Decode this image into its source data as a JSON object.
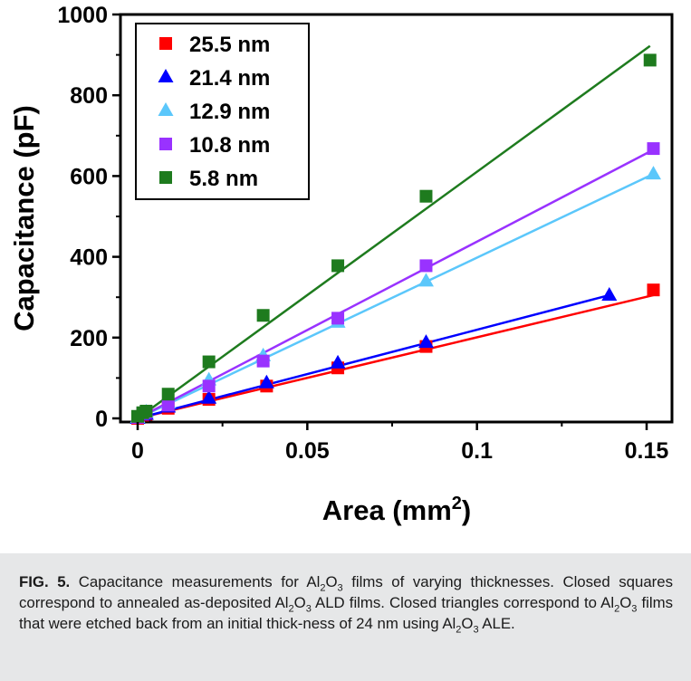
{
  "chart_data": {
    "type": "scatter",
    "xlabel": "Area (mm",
    "xlabel_sup": "2",
    "xlabel_end": ")",
    "ylabel": "Capacitance (pF)",
    "xlim": [
      -0.005,
      0.16
    ],
    "ylim": [
      -10,
      1000
    ],
    "x_ticks": [
      0,
      0.05,
      0.1,
      0.15
    ],
    "x_tick_labels": [
      "0",
      "0.05",
      "0.1",
      "0.15"
    ],
    "y_ticks": [
      0,
      200,
      400,
      600,
      800,
      1000
    ],
    "y_tick_labels": [
      "0",
      "200",
      "400",
      "600",
      "800",
      "1000"
    ],
    "grid": false,
    "legend_position": "top-left",
    "fit_lines": true,
    "series": [
      {
        "name": "25.5 nm",
        "marker": "square",
        "color": "#ff0000",
        "x": [
          0,
          0.0015,
          0.0025,
          0.009,
          0.021,
          0.038,
          0.059,
          0.085,
          0.152
        ],
        "y": [
          0,
          8,
          10,
          25,
          47,
          80,
          125,
          178,
          318
        ],
        "fit": {
          "x": [
            0,
            0.152
          ],
          "y": [
            0,
            305
          ]
        }
      },
      {
        "name": "21.4 nm",
        "marker": "triangle",
        "color": "#0000ff",
        "x": [
          0,
          0.0015,
          0.0025,
          0.009,
          0.021,
          0.038,
          0.059,
          0.085,
          0.139
        ],
        "y": [
          0,
          8,
          10,
          28,
          50,
          88,
          137,
          188,
          305
        ],
        "fit": {
          "x": [
            0,
            0.139
          ],
          "y": [
            0,
            305
          ]
        }
      },
      {
        "name": "12.9 nm",
        "marker": "triangle",
        "color": "#5bc7fb",
        "x": [
          0,
          0.0015,
          0.0025,
          0.009,
          0.021,
          0.037,
          0.059,
          0.085,
          0.152
        ],
        "y": [
          2,
          12,
          16,
          38,
          95,
          155,
          238,
          340,
          605
        ],
        "fit": {
          "x": [
            0,
            0.152
          ],
          "y": [
            0,
            605
          ]
        }
      },
      {
        "name": "10.8 nm",
        "marker": "square",
        "color": "#9932ff",
        "x": [
          0,
          0.0015,
          0.0025,
          0.009,
          0.021,
          0.037,
          0.059,
          0.085,
          0.152
        ],
        "y": [
          2,
          12,
          15,
          33,
          80,
          142,
          248,
          378,
          668
        ],
        "fit": {
          "x": [
            0,
            0.152
          ],
          "y": [
            0,
            665
          ]
        }
      },
      {
        "name": "5.8 nm",
        "marker": "square",
        "color": "#1e7b1e",
        "x": [
          0,
          0.0015,
          0.0025,
          0.009,
          0.021,
          0.037,
          0.059,
          0.085,
          0.151
        ],
        "y": [
          5,
          14,
          18,
          60,
          140,
          255,
          378,
          550,
          887
        ],
        "fit": {
          "x": [
            0,
            0.151
          ],
          "y": [
            0,
            922
          ]
        }
      }
    ]
  },
  "caption": {
    "fig_label": "FIG. 5.",
    "html": "Capacitance measurements for Al<sub>2</sub>O<sub>3</sub> films of varying thicknesses. Closed squares correspond to annealed as-deposited Al<sub>2</sub>O<sub>3</sub> ALD films. Closed triangles correspond to Al<sub>2</sub>O<sub>3</sub> films that were etched back from an initial thick-ness of 24 nm using Al<sub>2</sub>O<sub>3</sub> ALE."
  }
}
